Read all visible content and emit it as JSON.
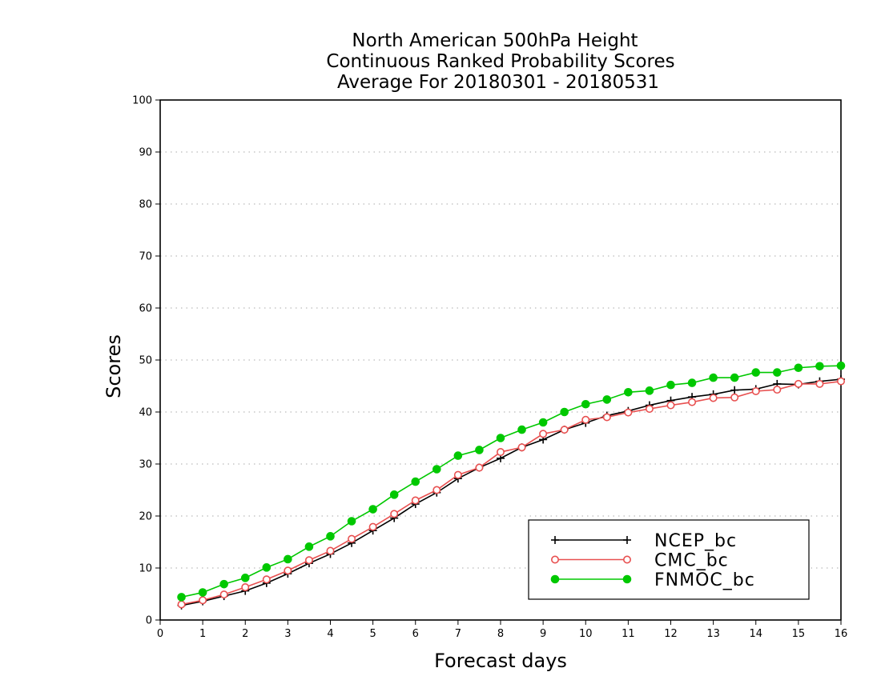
{
  "chart_data": {
    "type": "line",
    "title_lines": [
      "North American 500hPa Height",
      "Continuous Ranked Probability Scores",
      "Average For 20180301 - 20180531"
    ],
    "xlabel": "Forecast days",
    "ylabel": "Scores",
    "xlim": [
      0,
      16
    ],
    "ylim": [
      0,
      100
    ],
    "xticks": [
      "0",
      "1",
      "2",
      "3",
      "4",
      "5",
      "6",
      "7",
      "8",
      "9",
      "10",
      "11",
      "12",
      "13",
      "14",
      "15",
      "16"
    ],
    "yticks": [
      "0",
      "10",
      "20",
      "30",
      "40",
      "50",
      "60",
      "70",
      "80",
      "90",
      "100"
    ],
    "grid": "horizontal dotted",
    "legend_position": "bottom-right",
    "x": [
      0.5,
      1,
      1.5,
      2,
      2.5,
      3,
      3.5,
      4,
      4.5,
      5,
      5.5,
      6,
      6.5,
      7,
      7.5,
      8,
      8.5,
      9,
      9.5,
      10,
      10.5,
      11,
      11.5,
      12,
      12.5,
      13,
      13.5,
      14,
      14.5,
      15,
      15.5,
      16
    ],
    "series": [
      {
        "name": "NCEP_bc",
        "color": "#000000",
        "marker": "plus",
        "values": [
          2.8,
          3.6,
          4.6,
          5.6,
          7.1,
          8.9,
          10.9,
          12.7,
          14.8,
          17.2,
          19.6,
          22.3,
          24.5,
          27.2,
          29.3,
          31.1,
          33.2,
          34.7,
          36.6,
          37.9,
          39.3,
          40.2,
          41.3,
          42.2,
          42.9,
          43.4,
          44.2,
          44.4,
          45.4,
          45.3,
          45.9,
          46.3
        ]
      },
      {
        "name": "CMC_bc",
        "color": "#e85050",
        "marker": "open-circle",
        "values": [
          3.0,
          3.8,
          4.9,
          6.3,
          7.8,
          9.5,
          11.5,
          13.3,
          15.6,
          17.9,
          20.4,
          23.0,
          25.0,
          27.9,
          29.3,
          32.3,
          33.2,
          35.8,
          36.6,
          38.5,
          39.0,
          39.9,
          40.6,
          41.3,
          41.9,
          42.7,
          42.8,
          44.0,
          44.3,
          45.4,
          45.4,
          45.9
        ]
      },
      {
        "name": "FNMOC_bc",
        "color": "#00c800",
        "marker": "filled-circle",
        "values": [
          4.4,
          5.3,
          6.9,
          8.1,
          10.1,
          11.7,
          14.1,
          16.1,
          19.0,
          21.3,
          24.1,
          26.6,
          29.0,
          31.6,
          32.7,
          35.0,
          36.6,
          38.0,
          40.0,
          41.5,
          42.4,
          43.8,
          44.1,
          45.2,
          45.6,
          46.6,
          46.6,
          47.6,
          47.6,
          48.5,
          48.8,
          48.9
        ]
      }
    ]
  }
}
